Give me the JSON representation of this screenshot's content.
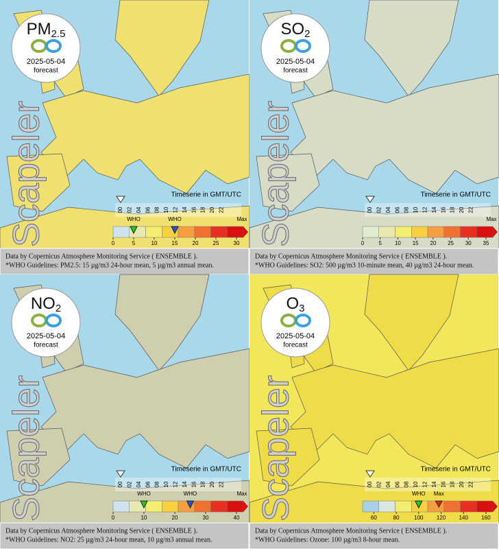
{
  "panels": [
    {
      "title": {
        "main": "PM",
        "sub": "2.5"
      },
      "date": "2025-05-04",
      "subtitle": "forecast",
      "brand": "Scapeler",
      "timeserie_label": "Timeserie in GMT/UTC",
      "hours": [
        "00",
        "02",
        "04",
        "06",
        "08",
        "10",
        "12",
        "14",
        "16",
        "18",
        "20",
        "22"
      ],
      "scale_lim": [
        0,
        30
      ],
      "scale_ticks": [
        0,
        5,
        10,
        15,
        20,
        25,
        30
      ],
      "max_label": "Max",
      "who_label": "WHO",
      "who_values": [
        5,
        15
      ],
      "who_colors": [
        "#22cc22",
        "#2255dd"
      ],
      "land_color": "#f0e070",
      "sea_color": "#a8d8ea",
      "scale_colors": [
        "#cfe3ec",
        "#e8e8b0",
        "#f4ee70",
        "#f6d040",
        "#f4a040",
        "#f07030",
        "#e83020",
        "#d81010"
      ],
      "caption": [
        "Data by Copernicus Atmosphere Monitoring Service ( ENSEMBLE ).",
        "*WHO Guidelines: PM2.5: 15 µg/m3 24-hour mean, 5 µg/m3 annual mean."
      ]
    },
    {
      "title": {
        "main": "SO",
        "sub": "2"
      },
      "date": "2025-05-04",
      "subtitle": "forecast",
      "brand": "Scapeler",
      "timeserie_label": "Timeserie in GMT/UTC",
      "hours": [
        "00",
        "02",
        "04",
        "06",
        "08",
        "10",
        "12",
        "14",
        "16",
        "18",
        "20",
        "22"
      ],
      "scale_lim": [
        0,
        35
      ],
      "scale_ticks": [
        0,
        5,
        10,
        15,
        20,
        25,
        30,
        35
      ],
      "max_label": "Max",
      "land_color": "#d6dcc6",
      "sea_color": "#a8d8ea",
      "scale_colors": [
        "#e0ecd0",
        "#e8e8b0",
        "#f4ee70",
        "#f6d040",
        "#f4a040",
        "#f07030",
        "#e83020",
        "#d81010"
      ],
      "caption": [
        "Data by Copernicus Atmosphere Monitoring Service ( ENSEMBLE ).",
        "*WHO Guidelines: SO2: 500 µg/m3 10-minute mean, 40 µg/m3 24-hour mean."
      ]
    },
    {
      "title": {
        "main": "NO",
        "sub": "2"
      },
      "date": "2025-05-04",
      "subtitle": "forecast",
      "brand": "Scapeler",
      "timeserie_label": "Timeserie in GMT/UTC",
      "hours": [
        "00",
        "02",
        "04",
        "06",
        "08",
        "10",
        "12",
        "14",
        "16",
        "18",
        "20",
        "22"
      ],
      "scale_lim": [
        0,
        40
      ],
      "scale_ticks": [
        0,
        10,
        20,
        30,
        40
      ],
      "max_label": "Max",
      "who_label": "WHO",
      "who_values": [
        10,
        25
      ],
      "who_colors": [
        "#22cc22",
        "#2255dd"
      ],
      "land_color": "#cfcfb0",
      "sea_color": "#a8d8ea",
      "scale_colors": [
        "#cfe3ec",
        "#e8e8b0",
        "#f4ee70",
        "#f6d040",
        "#f4a040",
        "#f07030",
        "#e83020",
        "#d81010"
      ],
      "caption": [
        "Data by Copernicus Atmosphere Monitoring Service ( ENSEMBLE ).",
        "*WHO Guidelines: NO2: 25 µg/m3 24-hour mean, 10 µg/m3 annual mean."
      ]
    },
    {
      "title": {
        "main": "O",
        "sub": "3"
      },
      "date": "2025-05-04",
      "subtitle": "forecast",
      "brand": "Scapeler",
      "timeserie_label": "Timeserie in GMT/UTC",
      "hours": [
        "00",
        "02",
        "04",
        "06",
        "08",
        "10",
        "12",
        "14",
        "16",
        "18",
        "20",
        "22"
      ],
      "scale_lim": [
        50,
        160
      ],
      "scale_ticks": [
        60,
        80,
        100,
        120,
        140,
        160
      ],
      "max_label": "Max",
      "max_value": 118,
      "who_label": "WHO",
      "who_values": [
        100
      ],
      "who_colors": [
        "#22cc22"
      ],
      "land_color": "#f0dc48",
      "sea_color": "#f2e65a",
      "scale_colors": [
        "#a8d0e8",
        "#d8e8e0",
        "#f4ee70",
        "#f6d040",
        "#f4a040",
        "#f07030",
        "#e83020",
        "#d81010"
      ],
      "caption": [
        "Data by Copernicus Atmosphere Monitoring Service ( ENSEMBLE ).",
        "*WHO Guidelines: Ozone: 100 µg/m3 8-hour mean."
      ]
    }
  ]
}
